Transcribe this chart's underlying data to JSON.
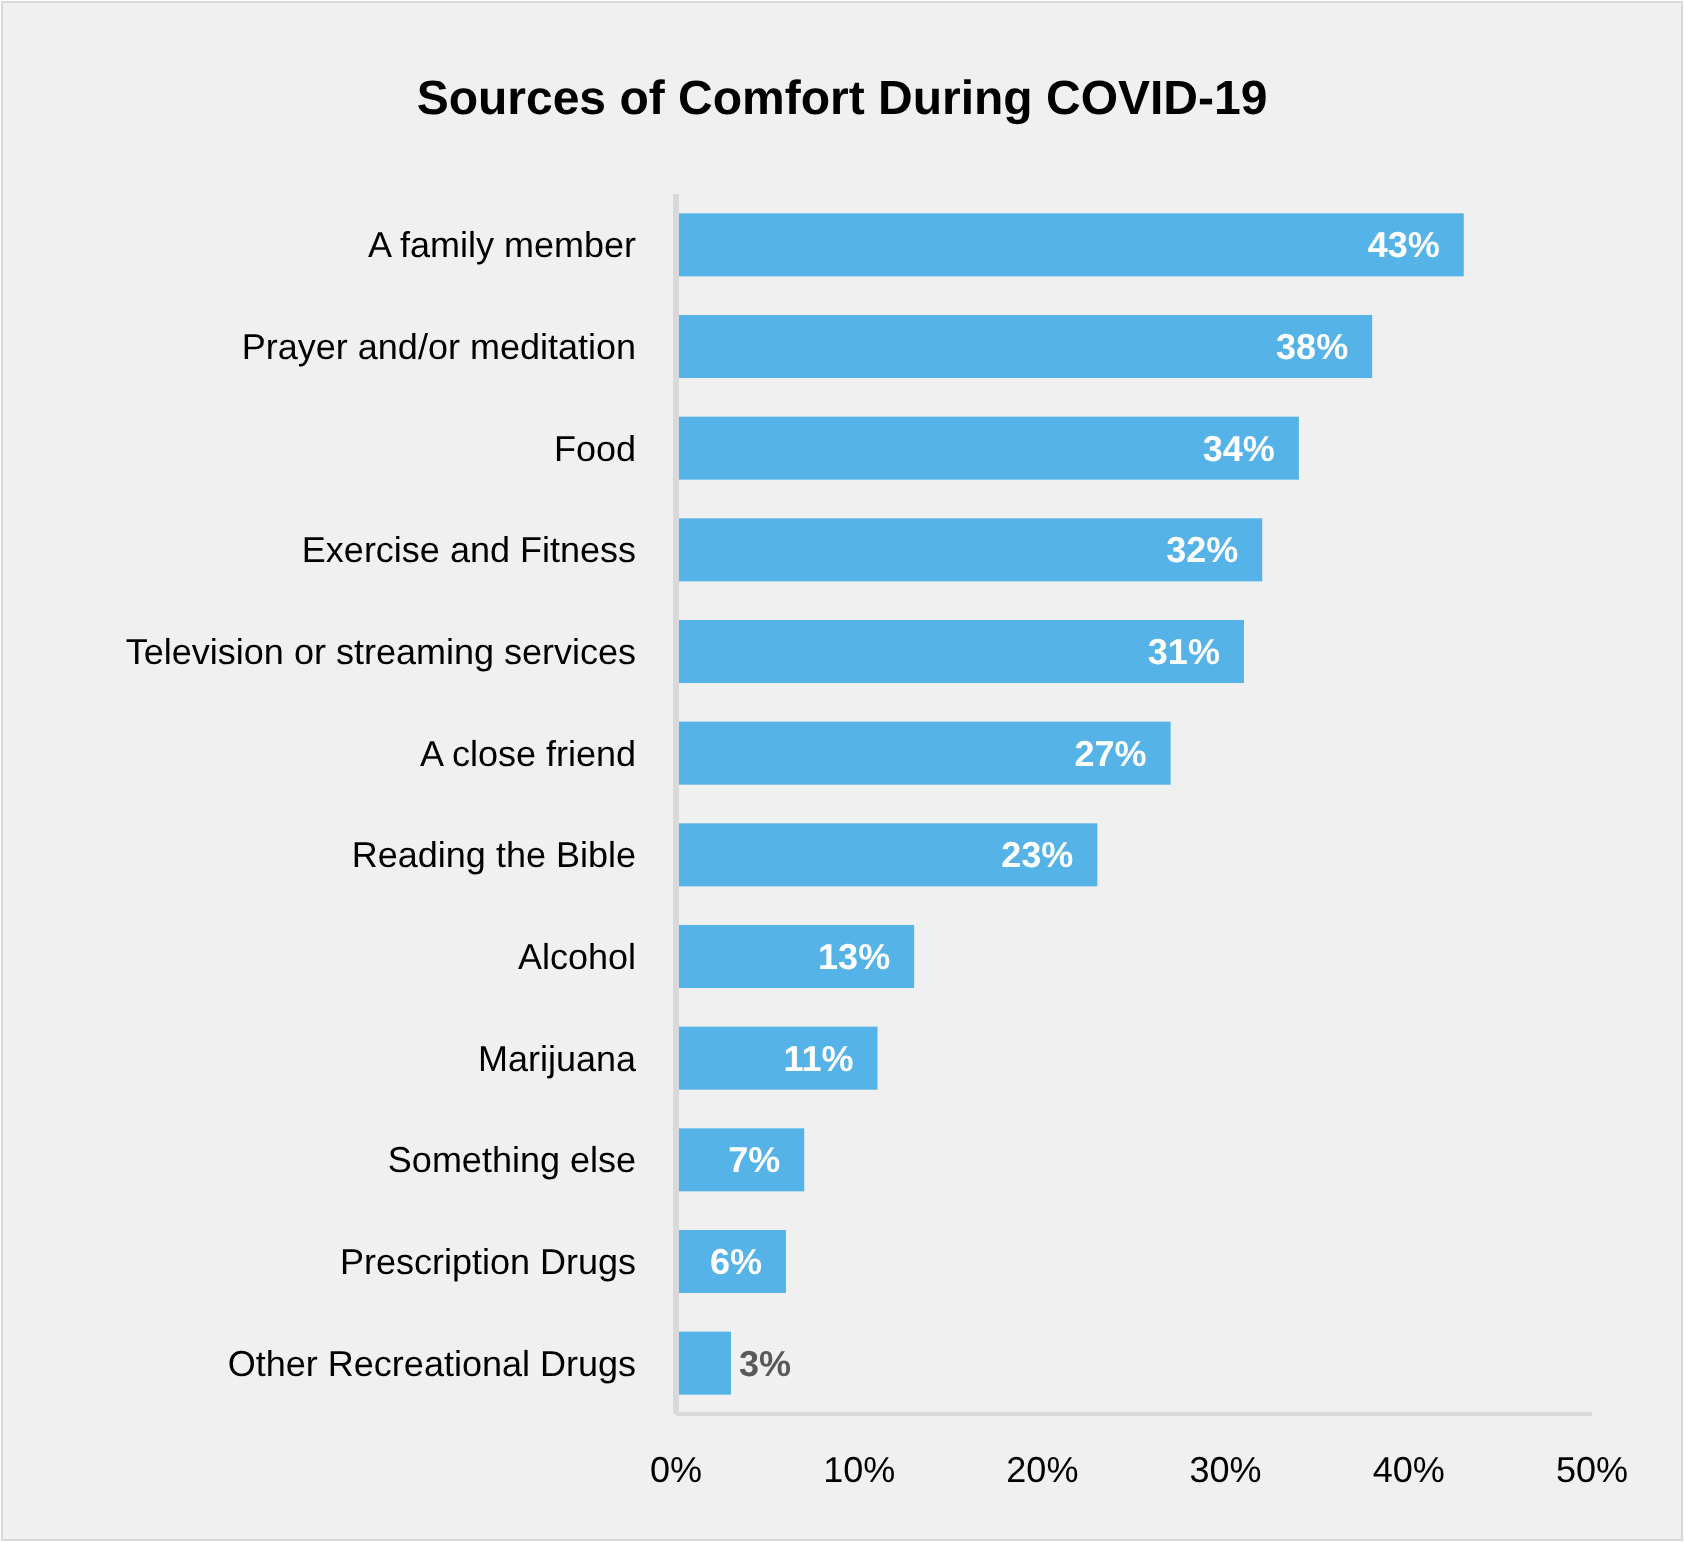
{
  "chart_data": {
    "type": "bar",
    "orientation": "horizontal",
    "title": "Sources of Comfort During COVID-19",
    "categories": [
      "A family member",
      "Prayer and/or meditation",
      "Food",
      "Exercise and Fitness",
      "Television or streaming services",
      "A close friend",
      "Reading the Bible",
      "Alcohol",
      "Marijuana",
      "Something else",
      "Prescription Drugs",
      "Other Recreational Drugs"
    ],
    "values": [
      43,
      38,
      34,
      32,
      31,
      27,
      23,
      13,
      11,
      7,
      6,
      3
    ],
    "color": "#56b3e8",
    "xlim": [
      0,
      50
    ],
    "xticks": [
      {
        "value": 0,
        "label": "0%"
      },
      {
        "value": 10,
        "label": "10%"
      },
      {
        "value": 20,
        "label": "20%"
      },
      {
        "value": 30,
        "label": "30%"
      },
      {
        "value": 40,
        "label": "40%"
      },
      {
        "value": 50,
        "label": "50%"
      }
    ],
    "value_labels": [
      "43%",
      "38%",
      "34%",
      "32%",
      "31%",
      "27%",
      "23%",
      "13%",
      "11%",
      "7%",
      "6%",
      "3%"
    ]
  }
}
